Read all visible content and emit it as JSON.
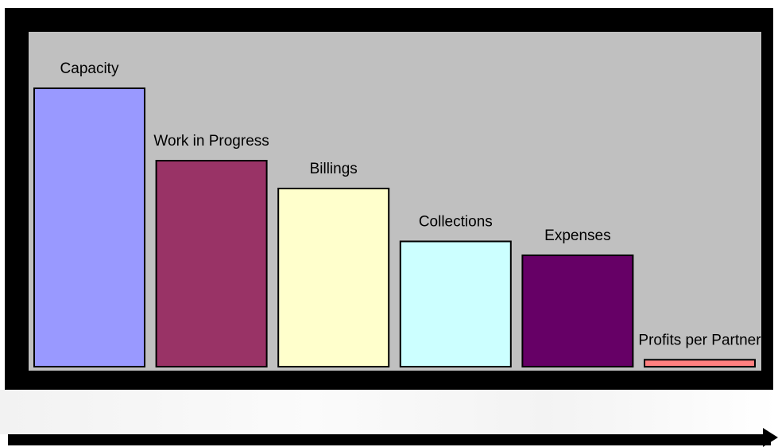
{
  "chart_data": {
    "type": "bar",
    "categories": [
      "Capacity",
      "Work in Progress",
      "Billings",
      "Collections",
      "Expenses",
      "Profits per Partner"
    ],
    "values": [
      100,
      74,
      64,
      45,
      40,
      2.5
    ],
    "colors": [
      "#9999ff",
      "#993366",
      "#ffffcc",
      "#ccffff",
      "#660066",
      "#ff8080"
    ],
    "title": "",
    "xlabel": "",
    "ylabel": "",
    "ylim": [
      0,
      100
    ],
    "grid": false,
    "legend": "none"
  }
}
